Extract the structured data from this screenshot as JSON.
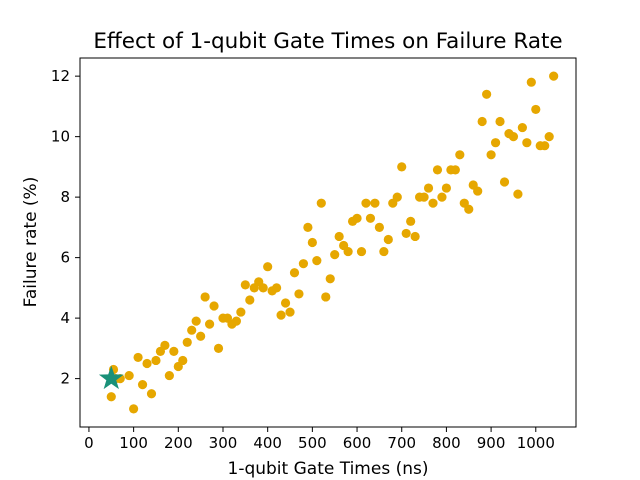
{
  "chart_data": {
    "type": "scatter",
    "title": "Effect of 1-qubit Gate Times on Failure Rate",
    "xlabel": "1-qubit Gate Times (ns)",
    "ylabel": "Failure rate (%)",
    "xlim": [
      -20,
      1090
    ],
    "ylim": [
      0.4,
      12.6
    ],
    "xticks": [
      0,
      100,
      200,
      300,
      400,
      500,
      600,
      700,
      800,
      900,
      1000
    ],
    "xtick_labels": [
      "0",
      "100",
      "200",
      "300",
      "400",
      "500",
      "600",
      "700",
      "800",
      "900",
      "1000"
    ],
    "yticks": [
      2,
      4,
      6,
      8,
      10,
      12
    ],
    "ytick_labels": [
      "2",
      "4",
      "6",
      "8",
      "10",
      "12"
    ],
    "grid": false,
    "series": [
      {
        "marker": "circle",
        "color": "#e6a700",
        "points": [
          [
            50,
            1.4
          ],
          [
            55,
            2.3
          ],
          [
            60,
            2.0
          ],
          [
            70,
            2.0
          ],
          [
            90,
            2.1
          ],
          [
            100,
            1.0
          ],
          [
            110,
            2.7
          ],
          [
            120,
            1.8
          ],
          [
            130,
            2.5
          ],
          [
            140,
            1.5
          ],
          [
            150,
            2.6
          ],
          [
            160,
            2.9
          ],
          [
            170,
            3.1
          ],
          [
            180,
            2.1
          ],
          [
            190,
            2.9
          ],
          [
            200,
            2.4
          ],
          [
            210,
            2.6
          ],
          [
            220,
            3.2
          ],
          [
            230,
            3.6
          ],
          [
            240,
            3.9
          ],
          [
            250,
            3.4
          ],
          [
            260,
            4.7
          ],
          [
            270,
            3.8
          ],
          [
            280,
            4.4
          ],
          [
            290,
            3.0
          ],
          [
            300,
            4.0
          ],
          [
            310,
            4.0
          ],
          [
            320,
            3.8
          ],
          [
            330,
            3.9
          ],
          [
            340,
            4.2
          ],
          [
            350,
            5.1
          ],
          [
            360,
            4.6
          ],
          [
            370,
            5.0
          ],
          [
            380,
            5.2
          ],
          [
            390,
            5.0
          ],
          [
            400,
            5.7
          ],
          [
            410,
            4.9
          ],
          [
            420,
            5.0
          ],
          [
            430,
            4.1
          ],
          [
            440,
            4.5
          ],
          [
            450,
            4.2
          ],
          [
            460,
            5.5
          ],
          [
            470,
            4.8
          ],
          [
            480,
            5.8
          ],
          [
            490,
            7.0
          ],
          [
            500,
            6.5
          ],
          [
            510,
            5.9
          ],
          [
            520,
            7.8
          ],
          [
            530,
            4.7
          ],
          [
            540,
            5.3
          ],
          [
            550,
            6.1
          ],
          [
            560,
            6.7
          ],
          [
            570,
            6.4
          ],
          [
            580,
            6.2
          ],
          [
            590,
            7.2
          ],
          [
            600,
            7.3
          ],
          [
            610,
            6.2
          ],
          [
            620,
            7.8
          ],
          [
            630,
            7.3
          ],
          [
            640,
            7.8
          ],
          [
            650,
            7.0
          ],
          [
            660,
            6.2
          ],
          [
            670,
            6.6
          ],
          [
            680,
            7.8
          ],
          [
            690,
            8.0
          ],
          [
            700,
            9.0
          ],
          [
            710,
            6.8
          ],
          [
            720,
            7.2
          ],
          [
            730,
            6.7
          ],
          [
            740,
            8.0
          ],
          [
            750,
            8.0
          ],
          [
            760,
            8.3
          ],
          [
            770,
            7.8
          ],
          [
            780,
            8.9
          ],
          [
            790,
            8.0
          ],
          [
            800,
            8.3
          ],
          [
            810,
            8.9
          ],
          [
            820,
            8.9
          ],
          [
            830,
            9.4
          ],
          [
            840,
            7.8
          ],
          [
            850,
            7.6
          ],
          [
            860,
            8.4
          ],
          [
            870,
            8.2
          ],
          [
            880,
            10.5
          ],
          [
            890,
            11.4
          ],
          [
            900,
            9.4
          ],
          [
            910,
            9.8
          ],
          [
            920,
            10.5
          ],
          [
            930,
            8.5
          ],
          [
            940,
            10.1
          ],
          [
            950,
            10.0
          ],
          [
            960,
            8.1
          ],
          [
            970,
            10.3
          ],
          [
            980,
            9.8
          ],
          [
            990,
            11.8
          ],
          [
            1000,
            10.9
          ],
          [
            1010,
            9.7
          ],
          [
            1020,
            9.7
          ],
          [
            1030,
            10.0
          ],
          [
            1040,
            12.0
          ]
        ]
      },
      {
        "marker": "star",
        "color": "#1a9179",
        "points": [
          [
            50,
            2.0
          ]
        ]
      }
    ]
  }
}
